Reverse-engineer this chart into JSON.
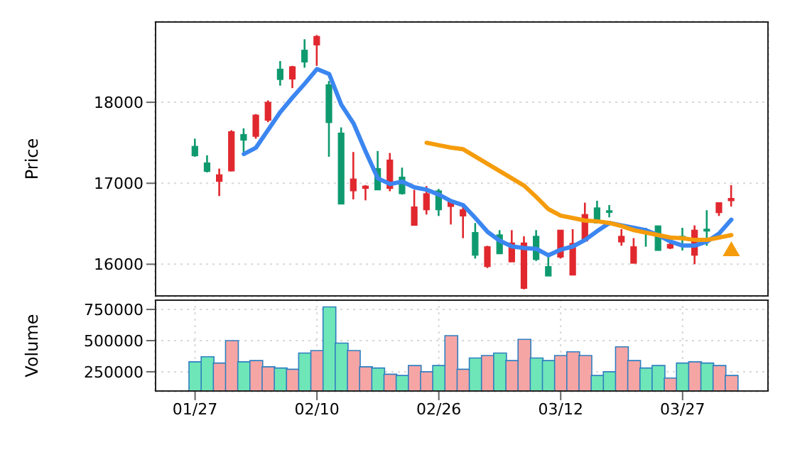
{
  "chart_data": [
    {
      "type": "candlestick",
      "ylabel": "Price",
      "ohlc": [
        [
          17456,
          17550,
          17327,
          17339
        ],
        [
          17251,
          17345,
          17134,
          17146
        ],
        [
          17023,
          17181,
          16842,
          17105
        ],
        [
          17152,
          17655,
          17146,
          17637
        ],
        [
          17602,
          17678,
          17386,
          17532
        ],
        [
          17579,
          17854,
          17550,
          17842
        ],
        [
          17778,
          18023,
          17754,
          18000
        ],
        [
          18409,
          18509,
          18205,
          18281
        ],
        [
          18287,
          18450,
          18175,
          18439
        ],
        [
          18643,
          18778,
          18427,
          18497
        ],
        [
          18708,
          18830,
          18450,
          18813
        ],
        [
          18216,
          18263,
          17327,
          17749
        ],
        [
          17620,
          17690,
          16743,
          16743
        ],
        [
          16906,
          17386,
          16801,
          17053
        ],
        [
          16936,
          16977,
          16789,
          16965
        ],
        [
          17181,
          17398,
          16918,
          16918
        ],
        [
          16936,
          17374,
          16901,
          17287
        ],
        [
          17076,
          17193,
          16860,
          16871
        ],
        [
          16480,
          16918,
          16480,
          16708
        ],
        [
          16672,
          16965,
          16614,
          16871
        ],
        [
          16906,
          16930,
          16596,
          16672
        ],
        [
          16713,
          16801,
          16491,
          16772
        ],
        [
          16596,
          16743,
          16322,
          16672
        ],
        [
          16392,
          16509,
          16070,
          16111
        ],
        [
          15971,
          16228,
          15953,
          16216
        ],
        [
          16363,
          16421,
          16129,
          16129
        ],
        [
          16029,
          16421,
          16029,
          16263
        ],
        [
          15702,
          16345,
          15690,
          16263
        ],
        [
          16345,
          16421,
          16041,
          16058
        ],
        [
          15971,
          16099,
          15854,
          15854
        ],
        [
          16088,
          16421,
          16070,
          16421
        ],
        [
          15866,
          16433,
          15866,
          16257
        ],
        [
          16287,
          16760,
          16287,
          16614
        ],
        [
          16696,
          16784,
          16509,
          16509
        ],
        [
          16661,
          16731,
          16579,
          16643
        ],
        [
          16275,
          16433,
          16228,
          16345
        ],
        [
          16012,
          16322,
          16012,
          16216
        ],
        [
          16421,
          16450,
          16216,
          16404
        ],
        [
          16474,
          16474,
          16170,
          16170
        ],
        [
          16199,
          16304,
          16187,
          16246
        ],
        [
          16345,
          16450,
          16170,
          16322
        ],
        [
          16111,
          16480,
          16000,
          16421
        ],
        [
          16433,
          16667,
          16228,
          16409
        ],
        [
          16637,
          16760,
          16596,
          16760
        ],
        [
          16784,
          16977,
          16713,
          16813
        ]
      ],
      "colors": [
        "#0e9a6e",
        "#0e9a6e",
        "#e0282e",
        "#e0282e",
        "#0e9a6e",
        "#e0282e",
        "#e0282e",
        "#0e9a6e",
        "#e0282e",
        "#0e9a6e",
        "#e0282e",
        "#0e9a6e",
        "#0e9a6e",
        "#e0282e",
        "#e0282e",
        "#0e9a6e",
        "#e0282e",
        "#0e9a6e",
        "#e0282e",
        "#e0282e",
        "#0e9a6e",
        "#e0282e",
        "#e0282e",
        "#0e9a6e",
        "#e0282e",
        "#0e9a6e",
        "#e0282e",
        "#e0282e",
        "#0e9a6e",
        "#0e9a6e",
        "#e0282e",
        "#e0282e",
        "#e0282e",
        "#0e9a6e",
        "#0e9a6e",
        "#e0282e",
        "#e0282e",
        "#0e9a6e",
        "#0e9a6e",
        "#e0282e",
        "#0e9a6e",
        "#e0282e",
        "#0e9a6e",
        "#e0282e",
        "#e0282e"
      ],
      "series": [
        {
          "type": "line",
          "color": "#3b86f0",
          "values": [
            null,
            null,
            null,
            null,
            17360,
            17440,
            17660,
            17880,
            18060,
            18230,
            18410,
            18350,
            17970,
            17740,
            17390,
            17060,
            16990,
            17020,
            16950,
            16920,
            16860,
            16780,
            16730,
            16570,
            16400,
            16290,
            16220,
            16200,
            16190,
            16110,
            16180,
            16220,
            16300,
            16410,
            16510,
            16480,
            16450,
            16420,
            16360,
            16280,
            16230,
            16230,
            16280,
            16380,
            16550
          ]
        },
        {
          "type": "line",
          "color": "#f59c0c",
          "values": [
            null,
            null,
            null,
            null,
            null,
            null,
            null,
            null,
            null,
            null,
            null,
            null,
            null,
            null,
            null,
            null,
            null,
            null,
            null,
            17500,
            17470,
            17440,
            17420,
            17330,
            17240,
            17150,
            17060,
            16970,
            16830,
            16680,
            16600,
            16570,
            16540,
            16530,
            16510,
            16470,
            16420,
            16390,
            16360,
            16330,
            16320,
            16300,
            16300,
            16330,
            16360
          ]
        },
        {
          "type": "scatter",
          "color": "#f59c0c",
          "marker": "triangle",
          "values": [
            null,
            null,
            null,
            null,
            null,
            null,
            null,
            null,
            null,
            null,
            null,
            null,
            null,
            null,
            null,
            null,
            null,
            null,
            null,
            null,
            null,
            null,
            null,
            null,
            null,
            null,
            null,
            null,
            null,
            null,
            null,
            null,
            null,
            null,
            null,
            null,
            null,
            null,
            null,
            null,
            null,
            null,
            null,
            null,
            16160
          ]
        }
      ],
      "ylim": [
        15600,
        19000
      ],
      "yticks": [
        16000,
        17000,
        18000
      ],
      "grid": true,
      "tick_labels": "y"
    },
    {
      "type": "bar",
      "ylabel": "Volume",
      "categories": [
        "01/27",
        null,
        null,
        null,
        null,
        null,
        null,
        null,
        null,
        null,
        "02/10",
        null,
        null,
        null,
        null,
        null,
        null,
        null,
        null,
        null,
        "02/26",
        null,
        null,
        null,
        null,
        null,
        null,
        null,
        null,
        null,
        "03/12",
        null,
        null,
        null,
        null,
        null,
        null,
        null,
        null,
        null,
        "03/27",
        null,
        null,
        null,
        null
      ],
      "values": [
        330000,
        370000,
        320000,
        500000,
        330000,
        340000,
        290000,
        280000,
        270000,
        400000,
        420000,
        770000,
        480000,
        420000,
        290000,
        280000,
        230000,
        220000,
        300000,
        250000,
        300000,
        540000,
        270000,
        360000,
        380000,
        400000,
        340000,
        510000,
        360000,
        340000,
        380000,
        410000,
        380000,
        220000,
        250000,
        450000,
        340000,
        280000,
        300000,
        200000,
        320000,
        330000,
        320000,
        300000,
        220000
      ],
      "colors": [
        "#6ee6b8",
        "#6ee6b8",
        "#f6a5a5",
        "#f6a5a5",
        "#6ee6b8",
        "#f6a5a5",
        "#f6a5a5",
        "#6ee6b8",
        "#f6a5a5",
        "#6ee6b8",
        "#f6a5a5",
        "#6ee6b8",
        "#6ee6b8",
        "#f6a5a5",
        "#f6a5a5",
        "#6ee6b8",
        "#f6a5a5",
        "#6ee6b8",
        "#f6a5a5",
        "#f6a5a5",
        "#6ee6b8",
        "#f6a5a5",
        "#f6a5a5",
        "#6ee6b8",
        "#f6a5a5",
        "#6ee6b8",
        "#f6a5a5",
        "#f6a5a5",
        "#6ee6b8",
        "#6ee6b8",
        "#f6a5a5",
        "#f6a5a5",
        "#f6a5a5",
        "#6ee6b8",
        "#6ee6b8",
        "#f6a5a5",
        "#f6a5a5",
        "#6ee6b8",
        "#6ee6b8",
        "#f6a5a5",
        "#6ee6b8",
        "#f6a5a5",
        "#6ee6b8",
        "#f6a5a5",
        "#f6a5a5"
      ],
      "ylim": [
        90000,
        830000
      ],
      "yticks": [
        250000,
        500000,
        750000
      ],
      "grid": true
    }
  ]
}
